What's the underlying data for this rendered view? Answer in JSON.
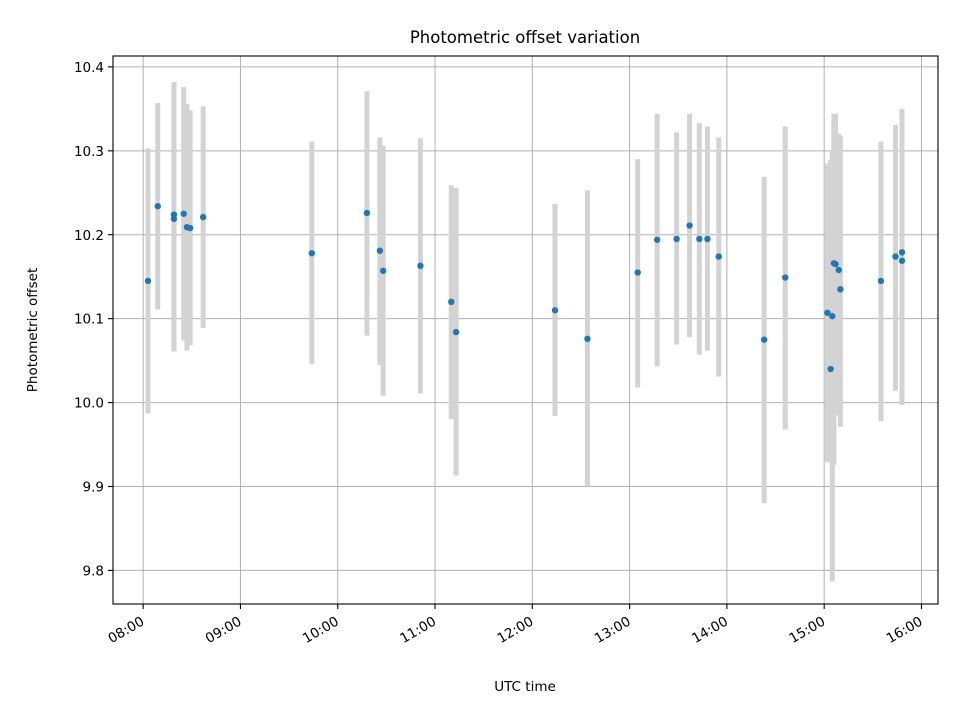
{
  "chart_data": {
    "type": "scatter",
    "title": "Photometric offset variation",
    "xlabel": "UTC time",
    "ylabel": "Photometric offset",
    "x_tick_labels": [
      "08:00",
      "09:00",
      "10:00",
      "11:00",
      "12:00",
      "13:00",
      "14:00",
      "15:00",
      "16:00"
    ],
    "x_ticks_hours": [
      8,
      9,
      10,
      11,
      12,
      13,
      14,
      15,
      16
    ],
    "xlim_hours": [
      7.69,
      16.17
    ],
    "y_ticks": [
      9.8,
      9.9,
      10.0,
      10.1,
      10.2,
      10.3,
      10.4
    ],
    "y_tick_labels": [
      "9.8",
      "9.9",
      "10.0",
      "10.1",
      "10.2",
      "10.3",
      "10.4"
    ],
    "ylim": [
      9.76,
      10.413
    ],
    "grid": true,
    "point_color": "#1f77b4",
    "errorbar_color": "#d3d3d3",
    "x_label_rotation_deg": 30,
    "points": [
      {
        "t": "08:03",
        "y": 10.145,
        "lo": 9.987,
        "hi": 10.303
      },
      {
        "t": "08:09",
        "y": 10.234,
        "lo": 10.111,
        "hi": 10.357
      },
      {
        "t": "08:19",
        "y": 10.219,
        "lo": 10.061,
        "hi": 10.382
      },
      {
        "t": "08:19",
        "y": 10.224,
        "lo": 10.061,
        "hi": 10.382
      },
      {
        "t": "08:25",
        "y": 10.225,
        "lo": 10.074,
        "hi": 10.376
      },
      {
        "t": "08:27",
        "y": 10.209,
        "lo": 10.062,
        "hi": 10.356
      },
      {
        "t": "08:29",
        "y": 10.208,
        "lo": 10.068,
        "hi": 10.348
      },
      {
        "t": "08:37",
        "y": 10.221,
        "lo": 10.089,
        "hi": 10.353
      },
      {
        "t": "09:44",
        "y": 10.178,
        "lo": 10.046,
        "hi": 10.311
      },
      {
        "t": "10:18",
        "y": 10.226,
        "lo": 10.08,
        "hi": 10.371
      },
      {
        "t": "10:26",
        "y": 10.181,
        "lo": 10.045,
        "hi": 10.316
      },
      {
        "t": "10:28",
        "y": 10.157,
        "lo": 10.008,
        "hi": 10.306
      },
      {
        "t": "10:51",
        "y": 10.163,
        "lo": 10.011,
        "hi": 10.315
      },
      {
        "t": "11:10",
        "y": 10.12,
        "lo": 9.98,
        "hi": 10.259
      },
      {
        "t": "11:13",
        "y": 10.084,
        "lo": 9.913,
        "hi": 10.256
      },
      {
        "t": "12:14",
        "y": 10.11,
        "lo": 9.984,
        "hi": 10.237
      },
      {
        "t": "12:34",
        "y": 10.076,
        "lo": 9.9,
        "hi": 10.253
      },
      {
        "t": "13:05",
        "y": 10.155,
        "lo": 10.018,
        "hi": 10.29
      },
      {
        "t": "13:17",
        "y": 10.194,
        "lo": 10.043,
        "hi": 10.344
      },
      {
        "t": "13:29",
        "y": 10.195,
        "lo": 10.069,
        "hi": 10.322
      },
      {
        "t": "13:37",
        "y": 10.211,
        "lo": 10.078,
        "hi": 10.344
      },
      {
        "t": "13:43",
        "y": 10.195,
        "lo": 10.057,
        "hi": 10.333
      },
      {
        "t": "13:48",
        "y": 10.195,
        "lo": 10.062,
        "hi": 10.329
      },
      {
        "t": "13:55",
        "y": 10.174,
        "lo": 10.031,
        "hi": 10.316
      },
      {
        "t": "14:23",
        "y": 10.075,
        "lo": 9.88,
        "hi": 10.269
      },
      {
        "t": "14:36",
        "y": 10.149,
        "lo": 9.968,
        "hi": 10.329
      },
      {
        "t": "15:02",
        "y": 10.107,
        "lo": 9.929,
        "hi": 10.285
      },
      {
        "t": "15:04",
        "y": 10.04,
        "lo": 9.929,
        "hi": 10.289
      },
      {
        "t": "15:05",
        "y": 10.103,
        "lo": 9.787,
        "hi": 10.3
      },
      {
        "t": "15:06",
        "y": 10.166,
        "lo": 9.926,
        "hi": 10.344
      },
      {
        "t": "15:07",
        "y": 10.165,
        "lo": 9.985,
        "hi": 10.344
      },
      {
        "t": "15:09",
        "y": 10.158,
        "lo": 9.995,
        "hi": 10.32
      },
      {
        "t": "15:10",
        "y": 10.135,
        "lo": 9.971,
        "hi": 10.318
      },
      {
        "t": "15:35",
        "y": 10.145,
        "lo": 9.978,
        "hi": 10.311
      },
      {
        "t": "15:44",
        "y": 10.174,
        "lo": 10.014,
        "hi": 10.331
      },
      {
        "t": "15:48",
        "y": 10.179,
        "lo": 10.002,
        "hi": 10.35
      },
      {
        "t": "15:48",
        "y": 10.169,
        "lo": 9.997,
        "hi": 10.341
      }
    ]
  }
}
